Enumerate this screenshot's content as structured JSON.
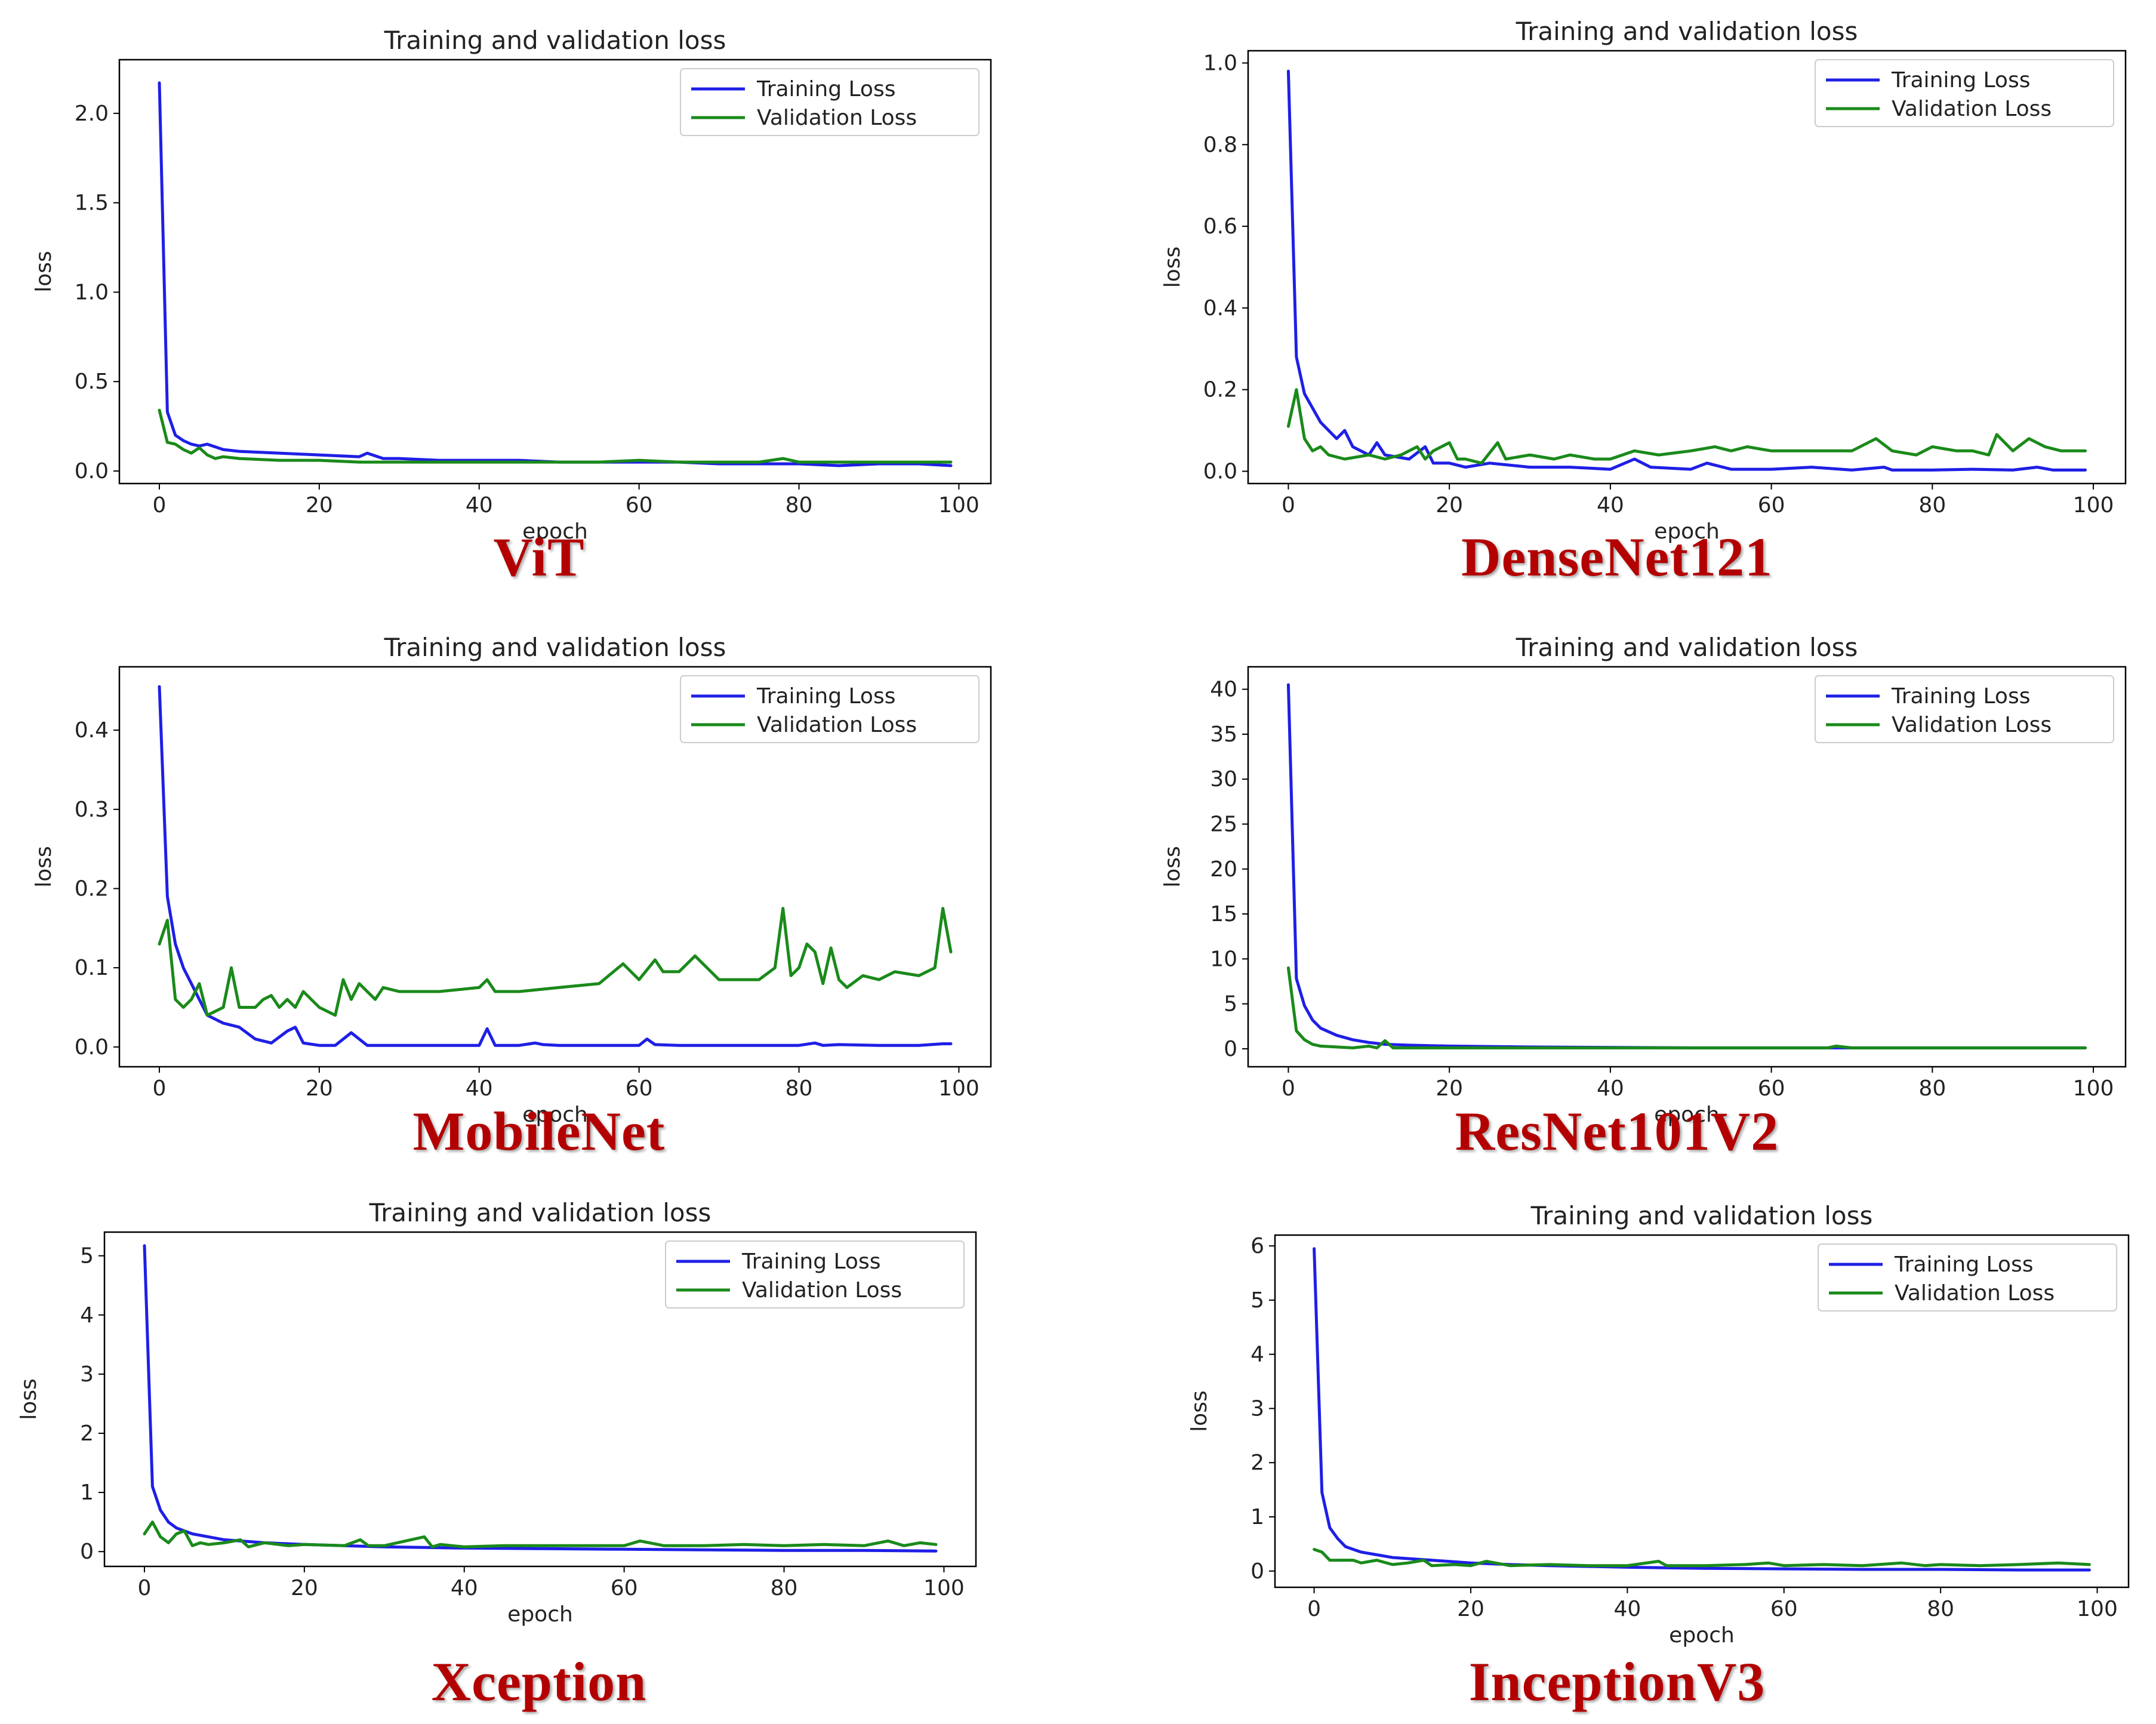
{
  "colors": {
    "training": "#1f1fe6",
    "validation": "#1a8a1a",
    "model_label": "#b30000"
  },
  "chart_data": [
    {
      "type": "line",
      "model": "ViT",
      "title": "Training and validation loss",
      "xlabel": "epoch",
      "ylabel": "loss",
      "xlim": [
        -5,
        104
      ],
      "ylim": [
        -0.07,
        2.3
      ],
      "xticks": [
        0,
        20,
        40,
        60,
        80,
        100
      ],
      "yticks": [
        0.0,
        0.5,
        1.0,
        1.5,
        2.0
      ],
      "ytick_labels": [
        "0.0",
        "0.5",
        "1.0",
        "1.5",
        "2.0"
      ],
      "legend": "top-right",
      "series": [
        {
          "name": "Training Loss",
          "color_key": "training",
          "x": [
            0,
            1,
            2,
            3,
            4,
            5,
            6,
            8,
            10,
            15,
            20,
            25,
            26,
            28,
            30,
            35,
            40,
            45,
            50,
            55,
            60,
            65,
            70,
            75,
            80,
            85,
            90,
            95,
            99
          ],
          "values": [
            2.17,
            0.33,
            0.2,
            0.17,
            0.15,
            0.14,
            0.15,
            0.12,
            0.11,
            0.1,
            0.09,
            0.08,
            0.1,
            0.07,
            0.07,
            0.06,
            0.06,
            0.06,
            0.05,
            0.05,
            0.05,
            0.05,
            0.04,
            0.04,
            0.04,
            0.03,
            0.04,
            0.04,
            0.03
          ]
        },
        {
          "name": "Validation Loss",
          "color_key": "validation",
          "x": [
            0,
            1,
            2,
            3,
            4,
            5,
            6,
            7,
            8,
            10,
            15,
            20,
            25,
            30,
            35,
            40,
            45,
            50,
            55,
            60,
            65,
            70,
            75,
            78,
            80,
            85,
            90,
            95,
            99
          ],
          "values": [
            0.34,
            0.16,
            0.15,
            0.12,
            0.1,
            0.13,
            0.09,
            0.07,
            0.08,
            0.07,
            0.06,
            0.06,
            0.05,
            0.05,
            0.05,
            0.05,
            0.05,
            0.05,
            0.05,
            0.06,
            0.05,
            0.05,
            0.05,
            0.07,
            0.05,
            0.05,
            0.05,
            0.05,
            0.05
          ]
        }
      ]
    },
    {
      "type": "line",
      "model": "DenseNet121",
      "title": "Training and validation loss",
      "xlabel": "epoch",
      "ylabel": "loss",
      "xlim": [
        -5,
        104
      ],
      "ylim": [
        -0.03,
        1.03
      ],
      "xticks": [
        0,
        20,
        40,
        60,
        80,
        100
      ],
      "yticks": [
        0.0,
        0.2,
        0.4,
        0.6,
        0.8,
        1.0
      ],
      "ytick_labels": [
        "0.0",
        "0.2",
        "0.4",
        "0.6",
        "0.8",
        "1.0"
      ],
      "legend": "top-right",
      "series": [
        {
          "name": "Training Loss",
          "color_key": "training",
          "x": [
            0,
            1,
            2,
            4,
            6,
            7,
            8,
            10,
            11,
            12,
            15,
            17,
            18,
            20,
            22,
            25,
            30,
            35,
            40,
            43,
            45,
            50,
            52,
            55,
            60,
            65,
            70,
            74,
            75,
            80,
            85,
            90,
            93,
            95,
            99
          ],
          "values": [
            0.98,
            0.28,
            0.19,
            0.12,
            0.08,
            0.1,
            0.06,
            0.04,
            0.07,
            0.04,
            0.03,
            0.06,
            0.02,
            0.02,
            0.01,
            0.02,
            0.01,
            0.01,
            0.005,
            0.03,
            0.01,
            0.005,
            0.02,
            0.005,
            0.005,
            0.01,
            0.003,
            0.01,
            0.003,
            0.003,
            0.005,
            0.003,
            0.01,
            0.003,
            0.003
          ]
        },
        {
          "name": "Validation Loss",
          "color_key": "validation",
          "x": [
            0,
            1,
            2,
            3,
            4,
            5,
            7,
            10,
            12,
            14,
            16,
            17,
            18,
            20,
            21,
            22,
            24,
            26,
            27,
            30,
            33,
            35,
            38,
            40,
            43,
            46,
            50,
            53,
            55,
            57,
            60,
            65,
            70,
            73,
            75,
            78,
            80,
            83,
            85,
            87,
            88,
            90,
            92,
            94,
            96,
            99
          ],
          "values": [
            0.11,
            0.2,
            0.08,
            0.05,
            0.06,
            0.04,
            0.03,
            0.04,
            0.03,
            0.04,
            0.06,
            0.03,
            0.05,
            0.07,
            0.03,
            0.03,
            0.02,
            0.07,
            0.03,
            0.04,
            0.03,
            0.04,
            0.03,
            0.03,
            0.05,
            0.04,
            0.05,
            0.06,
            0.05,
            0.06,
            0.05,
            0.05,
            0.05,
            0.08,
            0.05,
            0.04,
            0.06,
            0.05,
            0.05,
            0.04,
            0.09,
            0.05,
            0.08,
            0.06,
            0.05,
            0.05
          ]
        }
      ]
    },
    {
      "type": "line",
      "model": "MobileNet",
      "title": "Training and validation loss",
      "xlabel": "epoch",
      "ylabel": "loss",
      "xlim": [
        -5,
        104
      ],
      "ylim": [
        -0.025,
        0.48
      ],
      "xticks": [
        0,
        20,
        40,
        60,
        80,
        100
      ],
      "yticks": [
        0.0,
        0.1,
        0.2,
        0.3,
        0.4
      ],
      "ytick_labels": [
        "0.0",
        "0.1",
        "0.2",
        "0.3",
        "0.4"
      ],
      "legend": "top-right",
      "series": [
        {
          "name": "Training Loss",
          "color_key": "training",
          "x": [
            0,
            1,
            2,
            3,
            4,
            5,
            6,
            8,
            10,
            12,
            14,
            16,
            17,
            18,
            20,
            22,
            24,
            25,
            26,
            30,
            35,
            40,
            41,
            42,
            45,
            47,
            48,
            50,
            55,
            60,
            61,
            62,
            65,
            70,
            75,
            80,
            82,
            83,
            85,
            90,
            95,
            98,
            99
          ],
          "values": [
            0.455,
            0.19,
            0.13,
            0.1,
            0.08,
            0.06,
            0.04,
            0.03,
            0.025,
            0.01,
            0.005,
            0.02,
            0.025,
            0.005,
            0.002,
            0.002,
            0.018,
            0.01,
            0.002,
            0.002,
            0.002,
            0.002,
            0.023,
            0.002,
            0.002,
            0.005,
            0.003,
            0.002,
            0.002,
            0.002,
            0.01,
            0.003,
            0.002,
            0.002,
            0.002,
            0.002,
            0.005,
            0.002,
            0.003,
            0.002,
            0.002,
            0.004,
            0.004
          ]
        },
        {
          "name": "Validation Loss",
          "color_key": "validation",
          "x": [
            0,
            1,
            2,
            3,
            4,
            5,
            6,
            8,
            9,
            10,
            12,
            13,
            14,
            15,
            16,
            17,
            18,
            20,
            22,
            23,
            24,
            25,
            27,
            28,
            30,
            35,
            40,
            41,
            42,
            45,
            50,
            55,
            58,
            60,
            62,
            63,
            65,
            67,
            70,
            75,
            77,
            78,
            79,
            80,
            81,
            82,
            83,
            84,
            85,
            86,
            88,
            90,
            92,
            95,
            97,
            98,
            99
          ],
          "values": [
            0.13,
            0.16,
            0.06,
            0.05,
            0.06,
            0.08,
            0.04,
            0.05,
            0.1,
            0.05,
            0.05,
            0.06,
            0.065,
            0.05,
            0.06,
            0.05,
            0.07,
            0.05,
            0.04,
            0.085,
            0.06,
            0.08,
            0.06,
            0.075,
            0.07,
            0.07,
            0.075,
            0.085,
            0.07,
            0.07,
            0.075,
            0.08,
            0.105,
            0.085,
            0.11,
            0.095,
            0.095,
            0.115,
            0.085,
            0.085,
            0.1,
            0.175,
            0.09,
            0.1,
            0.13,
            0.12,
            0.08,
            0.125,
            0.085,
            0.075,
            0.09,
            0.085,
            0.095,
            0.09,
            0.1,
            0.175,
            0.12
          ]
        }
      ]
    },
    {
      "type": "line",
      "model": "ResNet101V2",
      "title": "Training and validation loss",
      "xlabel": "epoch",
      "ylabel": "loss",
      "xlim": [
        -5,
        104
      ],
      "ylim": [
        -2,
        42.5
      ],
      "xticks": [
        0,
        20,
        40,
        60,
        80,
        100
      ],
      "yticks": [
        0,
        5,
        10,
        15,
        20,
        25,
        30,
        35,
        40
      ],
      "ytick_labels": [
        "0",
        "5",
        "10",
        "15",
        "20",
        "25",
        "30",
        "35",
        "40"
      ],
      "legend": "top-right",
      "series": [
        {
          "name": "Training Loss",
          "color_key": "training",
          "x": [
            0,
            1,
            2,
            3,
            4,
            6,
            8,
            10,
            12,
            15,
            20,
            30,
            40,
            50,
            60,
            70,
            80,
            90,
            99
          ],
          "values": [
            40.5,
            7.8,
            4.8,
            3.2,
            2.3,
            1.5,
            1.0,
            0.7,
            0.5,
            0.4,
            0.3,
            0.2,
            0.15,
            0.1,
            0.1,
            0.1,
            0.1,
            0.1,
            0.1
          ]
        },
        {
          "name": "Validation Loss",
          "color_key": "validation",
          "x": [
            0,
            1,
            2,
            3,
            4,
            6,
            8,
            10,
            11,
            12,
            13,
            15,
            20,
            30,
            40,
            50,
            60,
            67,
            68,
            70,
            80,
            90,
            99
          ],
          "values": [
            9.0,
            2.0,
            1.0,
            0.5,
            0.3,
            0.2,
            0.1,
            0.3,
            0.1,
            0.9,
            0.1,
            0.1,
            0.1,
            0.1,
            0.1,
            0.1,
            0.1,
            0.1,
            0.3,
            0.1,
            0.1,
            0.1,
            0.1
          ]
        }
      ]
    },
    {
      "type": "line",
      "model": "Xception",
      "title": "Training and validation loss",
      "xlabel": "epoch",
      "ylabel": "loss",
      "xlim": [
        -5,
        104
      ],
      "ylim": [
        -0.25,
        5.4
      ],
      "xticks": [
        0,
        20,
        40,
        60,
        80,
        100
      ],
      "yticks": [
        0,
        1,
        2,
        3,
        4,
        5
      ],
      "ytick_labels": [
        "0",
        "1",
        "2",
        "3",
        "4",
        "5"
      ],
      "legend": "top-right",
      "series": [
        {
          "name": "Training Loss",
          "color_key": "training",
          "x": [
            0,
            1,
            2,
            3,
            4,
            6,
            8,
            10,
            15,
            20,
            25,
            30,
            35,
            40,
            50,
            60,
            70,
            80,
            90,
            99
          ],
          "values": [
            5.17,
            1.1,
            0.7,
            0.5,
            0.4,
            0.3,
            0.25,
            0.2,
            0.15,
            0.12,
            0.1,
            0.08,
            0.07,
            0.06,
            0.05,
            0.04,
            0.03,
            0.02,
            0.02,
            0.01
          ]
        },
        {
          "name": "Validation Loss",
          "color_key": "validation",
          "x": [
            0,
            1,
            2,
            3,
            4,
            5,
            6,
            7,
            8,
            10,
            12,
            13,
            15,
            18,
            20,
            25,
            27,
            28,
            30,
            35,
            36,
            37,
            40,
            45,
            50,
            55,
            60,
            62,
            65,
            70,
            75,
            80,
            85,
            90,
            93,
            95,
            97,
            99
          ],
          "values": [
            0.3,
            0.5,
            0.25,
            0.15,
            0.3,
            0.35,
            0.1,
            0.15,
            0.12,
            0.15,
            0.2,
            0.08,
            0.15,
            0.1,
            0.12,
            0.1,
            0.2,
            0.1,
            0.1,
            0.25,
            0.08,
            0.12,
            0.08,
            0.1,
            0.1,
            0.1,
            0.1,
            0.18,
            0.1,
            0.1,
            0.12,
            0.1,
            0.12,
            0.1,
            0.18,
            0.1,
            0.15,
            0.12
          ]
        }
      ]
    },
    {
      "type": "line",
      "model": "InceptionV3",
      "title": "Training and validation loss",
      "xlabel": "epoch",
      "ylabel": "loss",
      "xlim": [
        -5,
        104
      ],
      "ylim": [
        -0.3,
        6.2
      ],
      "xticks": [
        0,
        20,
        40,
        60,
        80,
        100
      ],
      "yticks": [
        0,
        1,
        2,
        3,
        4,
        5,
        6
      ],
      "ytick_labels": [
        "0",
        "1",
        "2",
        "3",
        "4",
        "5",
        "6"
      ],
      "legend": "top-right",
      "series": [
        {
          "name": "Training Loss",
          "color_key": "training",
          "x": [
            0,
            1,
            2,
            3,
            4,
            5,
            6,
            8,
            10,
            15,
            20,
            25,
            30,
            40,
            50,
            60,
            70,
            80,
            90,
            99
          ],
          "values": [
            5.95,
            1.45,
            0.8,
            0.6,
            0.45,
            0.4,
            0.35,
            0.3,
            0.25,
            0.2,
            0.15,
            0.12,
            0.1,
            0.07,
            0.05,
            0.04,
            0.03,
            0.03,
            0.02,
            0.02
          ]
        },
        {
          "name": "Validation Loss",
          "color_key": "validation",
          "x": [
            0,
            1,
            2,
            3,
            4,
            5,
            6,
            8,
            10,
            12,
            14,
            15,
            18,
            20,
            22,
            25,
            30,
            35,
            40,
            44,
            45,
            50,
            55,
            58,
            60,
            65,
            70,
            75,
            78,
            80,
            85,
            90,
            95,
            99
          ],
          "values": [
            0.4,
            0.35,
            0.2,
            0.2,
            0.2,
            0.2,
            0.15,
            0.2,
            0.12,
            0.15,
            0.2,
            0.1,
            0.12,
            0.1,
            0.18,
            0.1,
            0.12,
            0.1,
            0.1,
            0.18,
            0.1,
            0.1,
            0.12,
            0.15,
            0.1,
            0.12,
            0.1,
            0.15,
            0.1,
            0.12,
            0.1,
            0.12,
            0.15,
            0.12
          ]
        }
      ]
    }
  ]
}
